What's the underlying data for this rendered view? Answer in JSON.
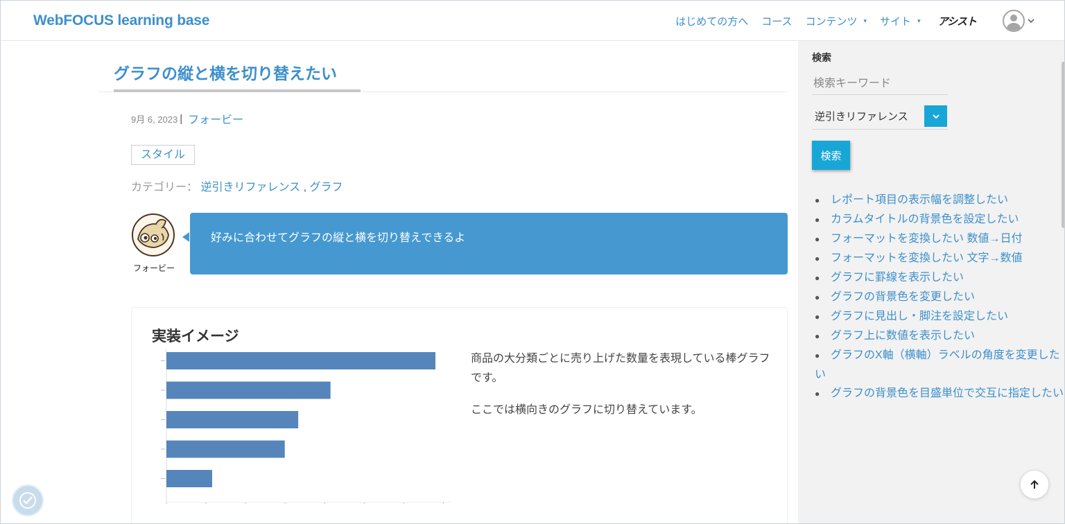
{
  "header": {
    "logo": "WebFOCUS learning base",
    "nav": [
      "はじめての方へ",
      "コース",
      "コンテンツ",
      "サイト"
    ],
    "nav_carets": [
      "",
      "",
      "▾",
      "▾"
    ],
    "assist": "アシスト"
  },
  "article": {
    "title": "グラフの縦と横を切り替えたい",
    "date": "9月 6, 2023",
    "date_sep": "|",
    "author": "フォービー",
    "tag": "スタイル",
    "category_label": "カテゴリー：",
    "categories": [
      "逆引きリファレンス",
      "グラフ"
    ],
    "category_sep": ",",
    "speaker": "フォービー",
    "bubble": "好みに合わせてグラフの縦と横を切り替えできるよ",
    "section_title": "実装イメージ",
    "paragraphs": [
      "商品の大分類ごとに売り上げた数量を表現している棒グラフです。",
      "ここでは横向きのグラフに切り替えています。"
    ]
  },
  "chart_data": {
    "type": "bar",
    "orientation": "horizontal",
    "values": [
      100,
      61,
      49,
      44,
      17
    ],
    "color": "#5585ba",
    "grid": false
  },
  "sidebar": {
    "label": "検索",
    "search_placeholder": "検索キーワード",
    "select_value": "逆引きリファレンス",
    "button": "検索",
    "links": [
      "レポート項目の表示幅を調整したい",
      "カラムタイトルの背景色を設定したい",
      "フォーマットを変換したい 数値→日付",
      "フォーマットを変換したい 文字→数値",
      "グラフに罫線を表示したい",
      "グラフの背景色を変更したい",
      "グラフに見出し・脚注を設定したい",
      "グラフ上に数値を表示したい",
      "グラフのX軸（横軸）ラベルの角度を変更したい",
      "グラフの背景色を目盛単位で交互に指定したい"
    ]
  },
  "colors": {
    "accent": "#3d8fcc",
    "bubble": "#4699d0",
    "button": "#17a6d6",
    "sidebar_bg": "#f2f2f2"
  }
}
